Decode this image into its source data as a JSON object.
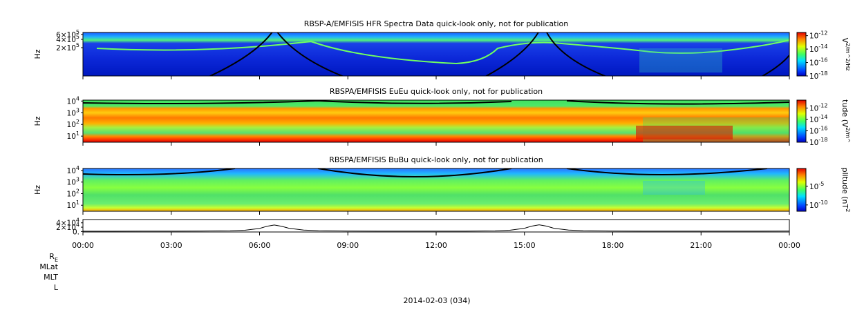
{
  "panels": [
    {
      "title": "RBSP-A/EMFISIS  HFR Spectra Data quick-look only, not for publication",
      "ylabel": "Hz",
      "yscale": "log",
      "ylim": [
        19000,
        710000
      ],
      "yticks": [
        {
          "value": 600000,
          "label": "6×10^5"
        },
        {
          "value": 400000,
          "label": "4×10^5"
        },
        {
          "value": 200000,
          "label": "2×10^5"
        }
      ],
      "colorbar": {
        "label": "V^2/m^2/Hz",
        "scale": "log",
        "lim": [
          1e-18,
          3e-12
        ],
        "ticks": [
          {
            "value": 1e-12,
            "label": "10^-12"
          },
          {
            "value": 1e-14,
            "label": "10^-14"
          },
          {
            "value": 1e-16,
            "label": "10^-16"
          },
          {
            "value": 1e-18,
            "label": "10^-18"
          }
        ]
      }
    },
    {
      "title": "RBSPA/EMFISIS  EuEu quick-look only, not for publication",
      "ylabel": "Hz",
      "yscale": "log",
      "ylim": [
        3,
        12000
      ],
      "yticks": [
        {
          "value": 10000,
          "label": "10^4"
        },
        {
          "value": 1000,
          "label": "10^3"
        },
        {
          "value": 100,
          "label": "10^2"
        },
        {
          "value": 10,
          "label": "10^1"
        }
      ],
      "colorbar": {
        "label": "tude (V^2/m^",
        "scale": "log",
        "lim": [
          1e-18,
          2.5e-11
        ],
        "ticks": [
          {
            "value": 1e-12,
            "label": "10^-12"
          },
          {
            "value": 1e-14,
            "label": "10^-14"
          },
          {
            "value": 1e-16,
            "label": "10^-16"
          },
          {
            "value": 1e-18,
            "label": "10^-18"
          }
        ]
      }
    },
    {
      "title": "RBSPA/EMFISIS  BuBu quick-look only, not for publication",
      "ylabel": "Hz",
      "yscale": "log",
      "ylim": [
        3,
        15000
      ],
      "yticks": [
        {
          "value": 10000,
          "label": "10^4"
        },
        {
          "value": 1000,
          "label": "10^3"
        },
        {
          "value": 100,
          "label": "10^2"
        },
        {
          "value": 10,
          "label": "10^1"
        }
      ],
      "colorbar": {
        "label": "plitude (nT^2",
        "scale": "log",
        "lim": [
          2e-12,
          0.6
        ],
        "ticks": [
          {
            "value": 1e-05,
            "label": "10^-5"
          },
          {
            "value": 1e-10,
            "label": "10^-10"
          }
        ]
      }
    },
    {
      "type": "line",
      "ylim": [
        -2000,
        55000
      ],
      "yticks": [
        {
          "value": 40000,
          "label": "4×10^4"
        },
        {
          "value": 20000,
          "label": "2×10^4"
        },
        {
          "value": 0,
          "label": "0."
        }
      ],
      "color": "#000000",
      "x": [
        0,
        1,
        2,
        3,
        4,
        5,
        5.5,
        6,
        6.25,
        6.5,
        6.75,
        7,
        7.5,
        8,
        9,
        10,
        11,
        12,
        13,
        14,
        14.5,
        15,
        15.25,
        15.5,
        15.75,
        16,
        16.5,
        17,
        18,
        19,
        20,
        21,
        22,
        23,
        24
      ],
      "values": [
        1500,
        1600,
        1700,
        1900,
        2300,
        3500,
        6000,
        14000,
        24000,
        30000,
        24000,
        15000,
        7000,
        4000,
        2500,
        2000,
        1800,
        1800,
        2000,
        3000,
        6000,
        15000,
        25000,
        31000,
        25000,
        15000,
        7000,
        4000,
        2500,
        2000,
        1800,
        1700,
        1800,
        2000,
        2500
      ]
    }
  ],
  "xlim": [
    0,
    24
  ],
  "xticks": [
    {
      "value": 0,
      "label": "00:00"
    },
    {
      "value": 3,
      "label": "03:00"
    },
    {
      "value": 6,
      "label": "06:00"
    },
    {
      "value": 9,
      "label": "09:00"
    },
    {
      "value": 12,
      "label": "12:00"
    },
    {
      "value": 15,
      "label": "15:00"
    },
    {
      "value": 18,
      "label": "18:00"
    },
    {
      "value": 21,
      "label": "21:00"
    },
    {
      "value": 24,
      "label": "00:00"
    }
  ],
  "ephemeris_labels": [
    "R_E",
    "MLat",
    "MLT",
    "L"
  ],
  "date_label": "2014-02-03 (034)"
}
